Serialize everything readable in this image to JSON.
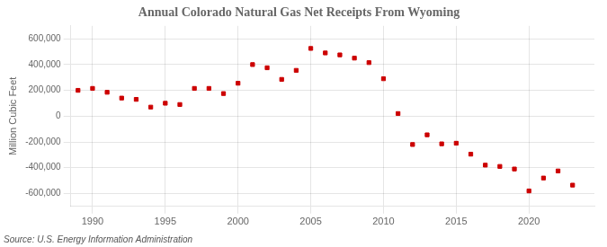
{
  "chart_data": {
    "type": "scatter",
    "title": "Annual Colorado Natural Gas Net Receipts From Wyoming",
    "ylabel": "Million Cubic Feet",
    "source": "Source: U.S. Energy Information Administration",
    "color": "#cc0000",
    "marker": "square",
    "grid": true,
    "xlim": [
      1988.5,
      2024.5
    ],
    "ylim": [
      -700000,
      700000
    ],
    "xticks": [
      1990,
      1995,
      2000,
      2005,
      2010,
      2015,
      2020
    ],
    "yticks": [
      {
        "value": -600000,
        "label": "-600,000"
      },
      {
        "value": -400000,
        "label": "-400,000"
      },
      {
        "value": -200000,
        "label": "-200,000"
      },
      0,
      {
        "value": 200000,
        "label": "200,000"
      },
      {
        "value": 400000,
        "label": "400,000"
      },
      {
        "value": 600000,
        "label": "600,000"
      }
    ],
    "x": [
      1989,
      1990,
      1991,
      1992,
      1993,
      1994,
      1995,
      1996,
      1997,
      1998,
      1999,
      2000,
      2001,
      2002,
      2003,
      2004,
      2005,
      2006,
      2007,
      2008,
      2009,
      2010,
      2011,
      2012,
      2013,
      2014,
      2015,
      2016,
      2017,
      2018,
      2019,
      2020,
      2021,
      2022,
      2023
    ],
    "values": [
      200000,
      215000,
      185000,
      140000,
      130000,
      70000,
      100000,
      90000,
      215000,
      215000,
      175000,
      255000,
      400000,
      375000,
      285000,
      355000,
      525000,
      490000,
      475000,
      450000,
      415000,
      290000,
      20000,
      -220000,
      -145000,
      -215000,
      -210000,
      -295000,
      -380000,
      -390000,
      -410000,
      -580000,
      -480000,
      -425000,
      -535000
    ]
  }
}
